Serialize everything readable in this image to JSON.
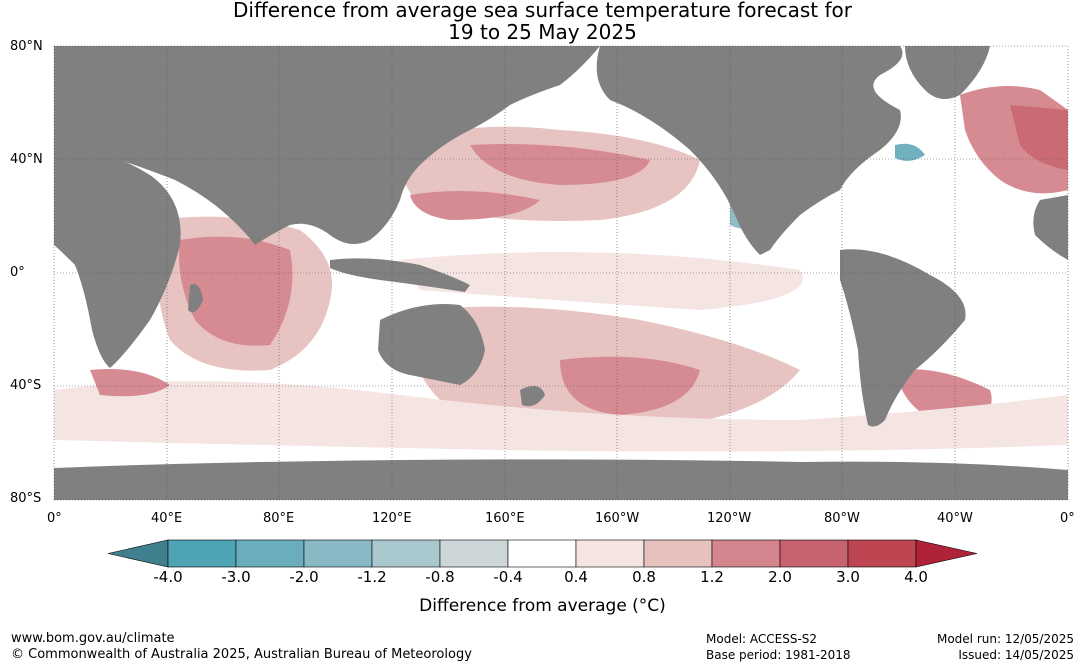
{
  "title_line1": "Difference from average sea surface temperature forecast for",
  "title_line2": "19 to 25 May 2025",
  "lat_labels": [
    "80°N",
    "40°N",
    "0°",
    "40°S",
    "80°S"
  ],
  "lon_labels": [
    "0°",
    "40°E",
    "80°E",
    "120°E",
    "160°E",
    "160°W",
    "120°W",
    "80°W",
    "40°W",
    "0°"
  ],
  "colorbar": {
    "labels": [
      "-4.0",
      "-3.0",
      "-2.0",
      "-1.2",
      "-0.8",
      "-0.4",
      "0.4",
      "0.8",
      "1.2",
      "2.0",
      "3.0",
      "4.0"
    ],
    "colors": [
      "#3f7f8e",
      "#4ea3b4",
      "#6aadbc",
      "#89b9c5",
      "#a9c8cd",
      "#ccd6d8",
      "#ffffff",
      "#f4e4e2",
      "#e6c1be",
      "#d4858d",
      "#c7636e",
      "#bd4652",
      "#b0223a"
    ],
    "title": "Difference from average (°C)"
  },
  "footer": {
    "left1": "www.bom.gov.au/climate",
    "left2": "© Commonwealth of Australia 2025, Australian Bureau of Meteorology",
    "mid1": "Model: ACCESS-S2",
    "mid2": "Base period: 1981-2018",
    "right1": "Model run: 12/05/2025",
    "right2": "Issued: 14/05/2025"
  },
  "colors": {
    "land": "#808080",
    "ocean": "#ffffff"
  }
}
